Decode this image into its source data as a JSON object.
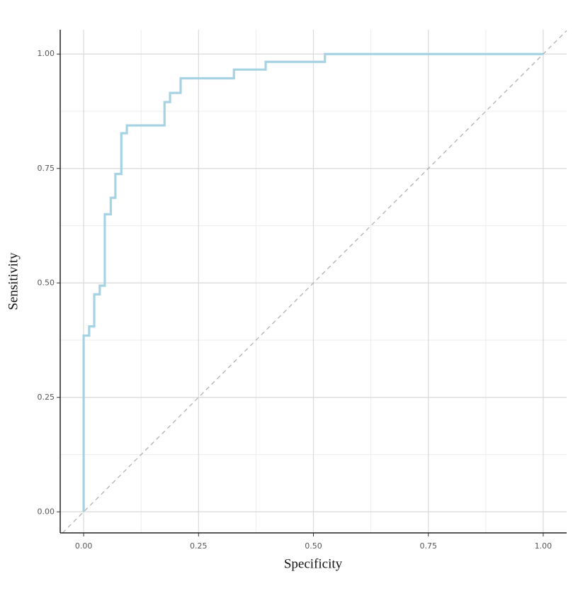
{
  "chart_data": {
    "type": "line",
    "x_label": "Specificity",
    "y_label": "Sensitivity",
    "xlim": [
      -0.051,
      1.051
    ],
    "ylim": [
      -0.046,
      1.053
    ],
    "xticks": [
      {
        "value": 0,
        "label": "0.00"
      },
      0.25,
      {
        "value": 0.5,
        "label": "0.50"
      },
      0.75,
      {
        "value": 1,
        "label": "1.00"
      }
    ],
    "yticks": [
      {
        "value": 0,
        "label": "0.00"
      },
      0.25,
      {
        "value": 0.5,
        "label": "0.50"
      },
      0.75,
      {
        "value": 1,
        "label": "1.00"
      }
    ],
    "grid": true,
    "reference_diagonal": true,
    "series": [
      {
        "color": "#a6d3e3",
        "x": [
          0,
          0,
          0.012,
          0.012,
          0.023,
          0.023,
          0.035,
          0.035,
          0.046,
          0.046,
          0.059,
          0.059,
          0.069,
          0.069,
          0.082,
          0.082,
          0.094,
          0.094,
          0.176,
          0.176,
          0.188,
          0.188,
          0.211,
          0.211,
          0.327,
          0.327,
          0.396,
          0.396,
          0.525,
          0.525,
          1.0
        ],
        "values": [
          0,
          0.385,
          0.385,
          0.405,
          0.405,
          0.475,
          0.475,
          0.494,
          0.494,
          0.65,
          0.65,
          0.686,
          0.686,
          0.738,
          0.738,
          0.827,
          0.827,
          0.844,
          0.844,
          0.895,
          0.895,
          0.915,
          0.915,
          0.947,
          0.947,
          0.966,
          0.966,
          0.983,
          0.983,
          1.0,
          1.0
        ]
      }
    ]
  }
}
